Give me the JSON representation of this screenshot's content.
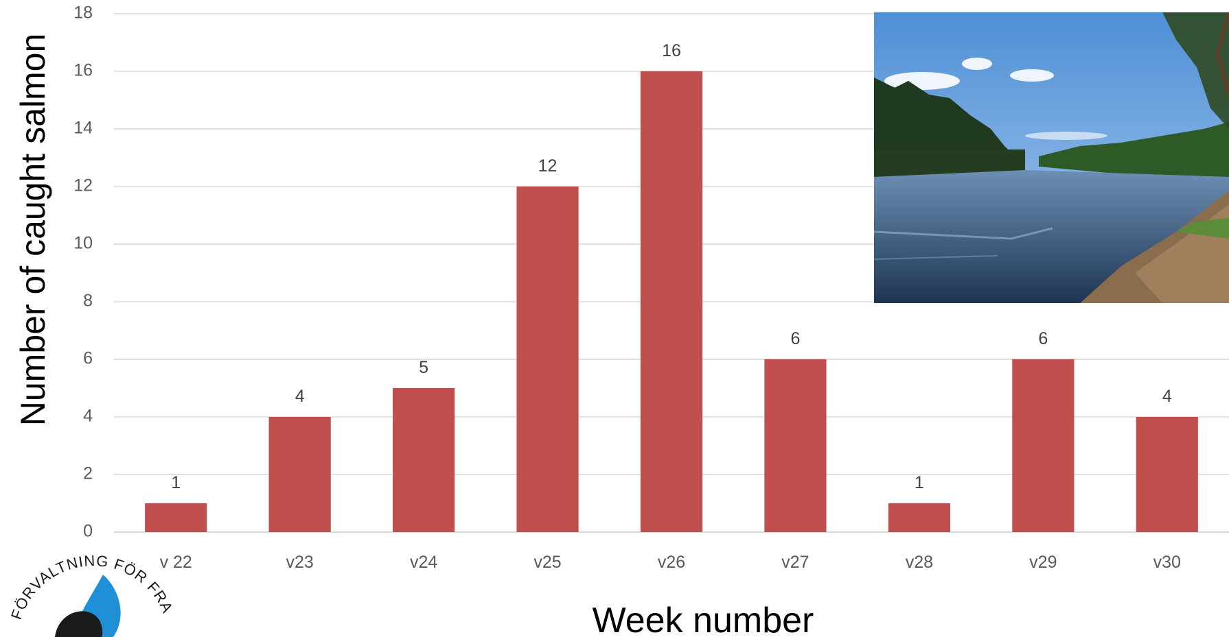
{
  "chart_data": {
    "type": "bar",
    "title": "",
    "xlabel": "Week number",
    "ylabel": "Number of caught salmon",
    "categories": [
      "v 22",
      "v23",
      "v24",
      "v25",
      "v26",
      "v27",
      "v28",
      "v29",
      "v30"
    ],
    "values": [
      1,
      4,
      5,
      12,
      16,
      6,
      1,
      6,
      4
    ],
    "ylim": [
      0,
      18
    ],
    "yticks": [
      0,
      2,
      4,
      6,
      8,
      10,
      12,
      14,
      16,
      18
    ],
    "grid": true,
    "data_labels": true,
    "bar_color": "#c0504d",
    "grid_color": "#d9d9d9"
  },
  "photo": {
    "description_icon": "river-landscape-photo"
  },
  "logo": {
    "arc_text": "FÖRVALTNING FÖR FRAMTID"
  }
}
